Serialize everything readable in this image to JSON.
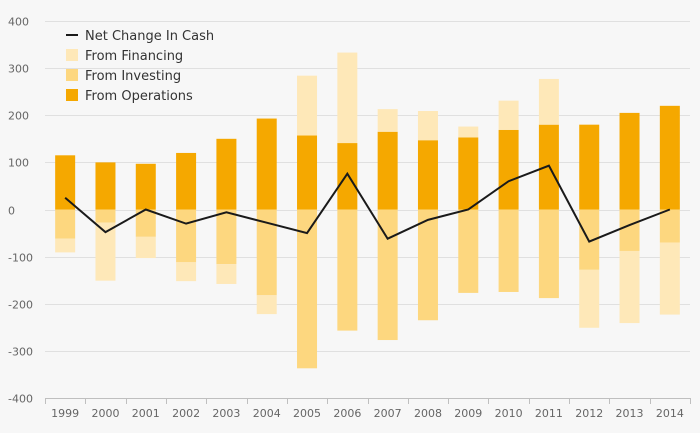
{
  "chart_data": {
    "type": "bar",
    "stacked": true,
    "categories": [
      "1999",
      "2000",
      "2001",
      "2002",
      "2003",
      "2004",
      "2005",
      "2006",
      "2007",
      "2008",
      "2009",
      "2010",
      "2011",
      "2012",
      "2013",
      "2014"
    ],
    "series": [
      {
        "name": "From Operations",
        "kind": "bar",
        "color": "#f5a800",
        "values": [
          115,
          100,
          97,
          120,
          150,
          193,
          157,
          141,
          165,
          147,
          153,
          169,
          180,
          180,
          205,
          220
        ]
      },
      {
        "name": "From Investing",
        "kind": "bar",
        "color": "#fdd77f",
        "values": [
          -62,
          -28,
          -58,
          -112,
          -116,
          -182,
          -337,
          -257,
          -277,
          -235,
          -177,
          -175,
          -188,
          -128,
          -88,
          -70
        ]
      },
      {
        "name": "From Financing",
        "kind": "bar",
        "color": "#fee8b8",
        "values": [
          -29,
          -123,
          -45,
          -40,
          -42,
          -40,
          127,
          192,
          48,
          62,
          23,
          62,
          97,
          -123,
          -153,
          -153
        ]
      },
      {
        "name": "Net Change In Cash",
        "kind": "line",
        "color": "#1a1a1a",
        "values": [
          25,
          -48,
          0,
          -30,
          -6,
          -28,
          -50,
          76,
          -62,
          -22,
          0,
          60,
          93,
          -68,
          -33,
          0
        ]
      }
    ],
    "ylim": [
      -400,
      400
    ],
    "yticks": [
      -400,
      -300,
      -200,
      -100,
      0,
      100,
      200,
      300,
      400
    ],
    "grid": true,
    "legend": {
      "position": "top-left",
      "items": [
        {
          "label": "Net Change In Cash",
          "symbol": "line",
          "color": "#1a1a1a"
        },
        {
          "label": "From Financing",
          "symbol": "square",
          "color": "#fee8b8"
        },
        {
          "label": "From Investing",
          "symbol": "square",
          "color": "#fdd77f"
        },
        {
          "label": "From Operations",
          "symbol": "square",
          "color": "#f5a800"
        }
      ]
    },
    "title": "",
    "xlabel": "",
    "ylabel": ""
  }
}
